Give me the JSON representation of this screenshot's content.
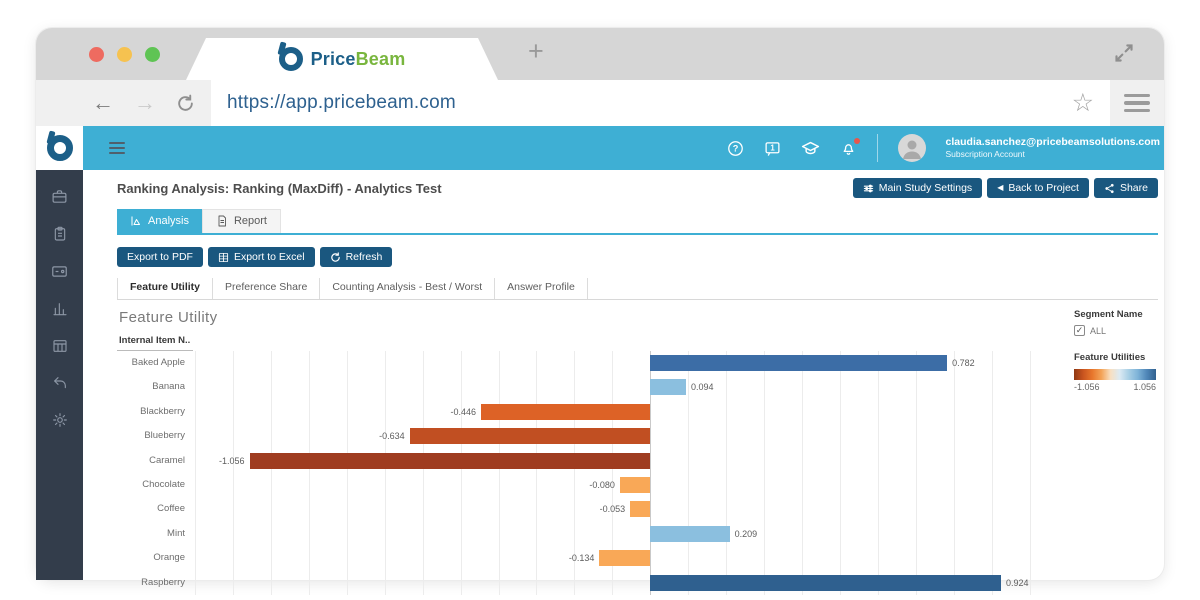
{
  "browser": {
    "tab_title_price": "Price",
    "tab_title_beam": "Beam",
    "new_tab_glyph": "+",
    "url": "https://app.pricebeam.com",
    "back_glyph": "←",
    "forward_glyph": "→",
    "bookmark_glyph": "☆"
  },
  "appbar": {
    "user_email": "claudia.sanchez@pricebeamsolutions.com",
    "user_subtitle": "Subscription Account",
    "chat_badge": "1",
    "help_glyph": "?"
  },
  "page": {
    "title": "Ranking Analysis: Ranking (MaxDiff) - Analytics Test",
    "buttons": {
      "settings": "Main Study Settings",
      "back": "Back to Project",
      "back_glyph": "◀",
      "share": "Share"
    },
    "tabs": {
      "analysis": "Analysis",
      "report": "Report"
    },
    "toolbar": {
      "pdf": "Export to PDF",
      "excel": "Export to Excel",
      "refresh": "Refresh"
    },
    "subtabs": [
      "Feature Utility",
      "Preference Share",
      "Counting Analysis - Best / Worst",
      "Answer Profile"
    ]
  },
  "chart_data": {
    "type": "bar",
    "orientation": "horizontal",
    "title": "Feature Utility",
    "row_header": "Internal Item N..",
    "categories": [
      "Baked Apple",
      "Banana",
      "Blackberry",
      "Blueberry",
      "Caramel",
      "Chocolate",
      "Coffee",
      "Mint",
      "Orange",
      "Raspberry"
    ],
    "values": [
      0.782,
      0.094,
      -0.446,
      -0.634,
      -1.056,
      -0.08,
      -0.053,
      0.209,
      -0.134,
      0.924
    ],
    "value_labels": [
      "0.782",
      "0.094",
      "-0.446",
      "-0.634",
      "-1.056",
      "-0.080",
      "-0.053",
      "0.209",
      "-0.134",
      "0.924"
    ],
    "bar_colors": [
      "#3c6da6",
      "#8bbfdf",
      "#dd6226",
      "#c14f22",
      "#9f3c20",
      "#f9a857",
      "#f9a857",
      "#8bbfdf",
      "#f9a857",
      "#2f608f"
    ],
    "xlim": [
      -1.205,
      1.09
    ],
    "grid_step": 0.1,
    "grid": true,
    "legend_position": "right",
    "legend": {
      "segment_title": "Segment Name",
      "segment_value": "ALL",
      "segment_checkbox": "✓",
      "utilities_title": "Feature Utilities",
      "min_label": "-1.056",
      "max_label": "1.056",
      "ramp_colors": [
        "#8f3813",
        "#c9541f",
        "#e8772c",
        "#f3a357",
        "#f8dfc0",
        "#dcEAf3",
        "#a8cfe5",
        "#7eb3d8",
        "#4f86b8",
        "#31618f"
      ]
    }
  },
  "colors": {
    "teal": "#3eafd4",
    "navy": "#1a577f",
    "sidebar": "#333d4b"
  }
}
